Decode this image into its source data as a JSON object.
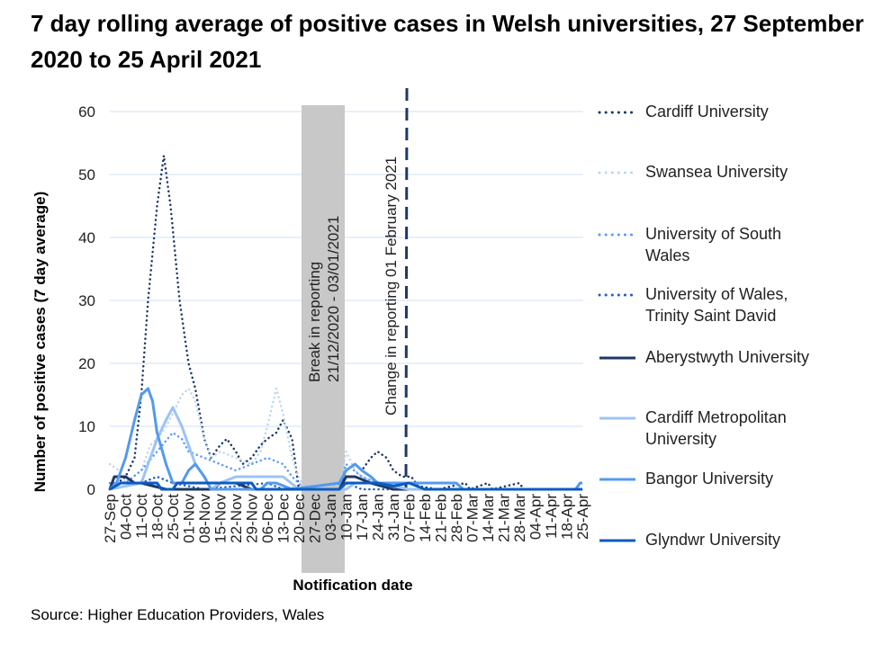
{
  "chart_data": {
    "type": "line",
    "title": "7 day rolling average of positive cases in Welsh universities, 27 September 2020 to 25 April 2021",
    "xlabel": "Notification date",
    "ylabel": "Number of positive cases (7 day average)",
    "ylim": [
      0,
      60
    ],
    "yticks": [
      0,
      10,
      20,
      30,
      40,
      50,
      60
    ],
    "grid": true,
    "legend_position": "right",
    "xticks": [
      "27-Sep",
      "04-Oct",
      "11-Oct",
      "18-Oct",
      "25-Oct",
      "01-Nov",
      "08-Nov",
      "15-Nov",
      "22-Nov",
      "29-Nov",
      "06-Dec",
      "13-Dec",
      "20-Dec",
      "27-Dec",
      "03-Jan",
      "10-Jan",
      "17-Jan",
      "24-Jan",
      "31-Jan",
      "07-Feb",
      "14-Feb",
      "21-Feb",
      "28-Feb",
      "07-Mar",
      "14-Mar",
      "21-Mar",
      "28-Mar",
      "04-Apr",
      "11-Apr",
      "18-Apr",
      "25-Apr"
    ],
    "annotations": {
      "break_label": "Break in reporting 21/12/2020 - 03/01/2021",
      "break_line1": "Break in reporting",
      "break_line2": "21/12/2020 - 03/01/2021",
      "change_label": "Change in reporting 01 February 2021"
    },
    "series": [
      {
        "name": "Cardiff University",
        "color": "#1f3864",
        "style": "dotted",
        "points": [
          [
            "2020-09-27",
            0
          ],
          [
            "2020-10-04",
            2
          ],
          [
            "2020-10-08",
            5
          ],
          [
            "2020-10-11",
            15
          ],
          [
            "2020-10-14",
            30
          ],
          [
            "2020-10-18",
            45
          ],
          [
            "2020-10-21",
            53
          ],
          [
            "2020-10-24",
            45
          ],
          [
            "2020-10-28",
            30
          ],
          [
            "2020-11-01",
            20
          ],
          [
            "2020-11-04",
            16
          ],
          [
            "2020-11-08",
            8
          ],
          [
            "2020-11-11",
            5
          ],
          [
            "2020-11-15",
            7
          ],
          [
            "2020-11-18",
            8
          ],
          [
            "2020-11-22",
            6
          ],
          [
            "2020-11-25",
            4
          ],
          [
            "2020-11-29",
            5
          ],
          [
            "2020-12-03",
            7
          ],
          [
            "2020-12-06",
            8
          ],
          [
            "2020-12-10",
            9
          ],
          [
            "2020-12-13",
            11
          ],
          [
            "2020-12-17",
            8
          ],
          [
            "2020-12-20",
            0
          ],
          [
            "2021-01-07",
            0
          ],
          [
            "2021-01-10",
            3
          ],
          [
            "2021-01-14",
            4
          ],
          [
            "2021-01-17",
            3
          ],
          [
            "2021-01-21",
            5
          ],
          [
            "2021-01-24",
            6
          ],
          [
            "2021-01-28",
            5
          ],
          [
            "2021-01-31",
            3
          ],
          [
            "2021-02-04",
            2
          ],
          [
            "2021-02-08",
            2
          ],
          [
            "2021-02-11",
            0.5
          ],
          [
            "2021-02-20",
            0
          ],
          [
            "2021-03-04",
            1
          ],
          [
            "2021-03-06",
            0
          ],
          [
            "2021-03-14",
            1
          ],
          [
            "2021-03-16",
            0
          ],
          [
            "2021-03-28",
            1
          ],
          [
            "2021-03-30",
            0
          ],
          [
            "2021-04-25",
            0
          ]
        ]
      },
      {
        "name": "Swansea University",
        "color": "#bdd7ee",
        "style": "dotted",
        "points": [
          [
            "2020-09-27",
            4
          ],
          [
            "2020-10-01",
            3
          ],
          [
            "2020-10-04",
            1
          ],
          [
            "2020-10-11",
            3
          ],
          [
            "2020-10-15",
            7
          ],
          [
            "2020-10-18",
            8
          ],
          [
            "2020-10-22",
            10
          ],
          [
            "2020-10-25",
            12
          ],
          [
            "2020-10-29",
            15
          ],
          [
            "2020-11-01",
            16
          ],
          [
            "2020-11-04",
            14
          ],
          [
            "2020-11-08",
            8
          ],
          [
            "2020-11-11",
            5
          ],
          [
            "2020-11-15",
            6
          ],
          [
            "2020-11-22",
            5
          ],
          [
            "2020-11-29",
            4
          ],
          [
            "2020-12-03",
            6
          ],
          [
            "2020-12-06",
            10
          ],
          [
            "2020-12-10",
            16
          ],
          [
            "2020-12-13",
            12
          ],
          [
            "2020-12-17",
            5
          ],
          [
            "2020-12-20",
            2
          ],
          [
            "2020-12-22",
            0
          ],
          [
            "2021-01-07",
            0
          ],
          [
            "2021-01-10",
            6
          ],
          [
            "2021-01-14",
            3
          ],
          [
            "2021-01-17",
            2
          ],
          [
            "2021-01-24",
            1
          ],
          [
            "2021-01-31",
            0.5
          ],
          [
            "2021-02-07",
            0
          ],
          [
            "2021-04-25",
            0
          ]
        ]
      },
      {
        "name": "University of South Wales",
        "color": "#5b9bff",
        "style": "dotted",
        "points": [
          [
            "2020-09-27",
            1
          ],
          [
            "2020-10-04",
            1
          ],
          [
            "2020-10-11",
            3
          ],
          [
            "2020-10-18",
            6
          ],
          [
            "2020-10-25",
            9
          ],
          [
            "2020-10-29",
            8
          ],
          [
            "2020-11-01",
            6
          ],
          [
            "2020-11-08",
            5
          ],
          [
            "2020-11-15",
            4
          ],
          [
            "2020-11-22",
            3
          ],
          [
            "2020-11-29",
            4
          ],
          [
            "2020-12-06",
            5
          ],
          [
            "2020-12-13",
            4
          ],
          [
            "2020-12-17",
            2
          ],
          [
            "2020-12-20",
            1
          ],
          [
            "2020-12-22",
            0
          ],
          [
            "2021-01-07",
            0
          ],
          [
            "2021-01-10",
            4
          ],
          [
            "2021-01-17",
            2
          ],
          [
            "2021-01-24",
            1
          ],
          [
            "2021-01-31",
            0
          ],
          [
            "2021-04-25",
            0
          ]
        ]
      },
      {
        "name": "University of Wales, Trinity Saint David",
        "color": "#1f5fbf",
        "style": "dotted",
        "points": [
          [
            "2020-09-27",
            0
          ],
          [
            "2020-10-11",
            1
          ],
          [
            "2020-10-18",
            2
          ],
          [
            "2020-10-25",
            1
          ],
          [
            "2020-11-01",
            0.5
          ],
          [
            "2020-11-08",
            0
          ],
          [
            "2020-12-06",
            1
          ],
          [
            "2020-12-13",
            0
          ],
          [
            "2021-01-10",
            1
          ],
          [
            "2021-01-17",
            0
          ],
          [
            "2021-04-25",
            0
          ]
        ]
      },
      {
        "name": "Aberystwyth University",
        "color": "#1f3864",
        "style": "solid",
        "points": [
          [
            "2020-09-27",
            0
          ],
          [
            "2020-09-29",
            2
          ],
          [
            "2020-10-04",
            2
          ],
          [
            "2020-10-08",
            1
          ],
          [
            "2020-10-11",
            1
          ],
          [
            "2020-10-22",
            0
          ],
          [
            "2020-11-12",
            0
          ],
          [
            "2020-11-15",
            1
          ],
          [
            "2020-11-22",
            1
          ],
          [
            "2020-11-29",
            0
          ],
          [
            "2021-01-07",
            0
          ],
          [
            "2021-01-10",
            2
          ],
          [
            "2021-01-14",
            2
          ],
          [
            "2021-01-21",
            1
          ],
          [
            "2021-01-31",
            0
          ],
          [
            "2021-04-25",
            0
          ]
        ]
      },
      {
        "name": "Cardiff Metropolitan University",
        "color": "#9dc3f6",
        "style": "solid",
        "points": [
          [
            "2020-09-27",
            0
          ],
          [
            "2020-10-11",
            1
          ],
          [
            "2020-10-15",
            5
          ],
          [
            "2020-10-18",
            8
          ],
          [
            "2020-10-22",
            11
          ],
          [
            "2020-10-25",
            13
          ],
          [
            "2020-10-29",
            10
          ],
          [
            "2020-11-01",
            7
          ],
          [
            "2020-11-04",
            4
          ],
          [
            "2020-11-08",
            2
          ],
          [
            "2020-11-11",
            0
          ],
          [
            "2020-11-15",
            1
          ],
          [
            "2020-11-22",
            2
          ],
          [
            "2020-11-29",
            2
          ],
          [
            "2020-12-06",
            2
          ],
          [
            "2020-12-13",
            2
          ],
          [
            "2020-12-20",
            0
          ],
          [
            "2021-01-10",
            0
          ],
          [
            "2021-01-14",
            1
          ],
          [
            "2021-01-24",
            1
          ],
          [
            "2021-01-31",
            0.5
          ],
          [
            "2021-02-07",
            0
          ],
          [
            "2021-04-25",
            0
          ]
        ]
      },
      {
        "name": "Bangor University",
        "color": "#5599ee",
        "style": "solid",
        "points": [
          [
            "2020-09-27",
            0
          ],
          [
            "2020-09-30",
            1
          ],
          [
            "2020-10-04",
            5
          ],
          [
            "2020-10-08",
            11
          ],
          [
            "2020-10-11",
            15
          ],
          [
            "2020-10-14",
            16
          ],
          [
            "2020-10-16",
            14
          ],
          [
            "2020-10-18",
            9
          ],
          [
            "2020-10-22",
            4
          ],
          [
            "2020-10-25",
            1
          ],
          [
            "2020-10-29",
            1
          ],
          [
            "2020-11-01",
            3
          ],
          [
            "2020-11-04",
            4
          ],
          [
            "2020-11-08",
            2
          ],
          [
            "2020-11-11",
            0
          ],
          [
            "2020-12-03",
            0
          ],
          [
            "2020-12-06",
            1
          ],
          [
            "2020-12-10",
            1
          ],
          [
            "2020-12-17",
            0
          ],
          [
            "2021-01-07",
            1
          ],
          [
            "2021-01-10",
            3
          ],
          [
            "2021-01-14",
            4
          ],
          [
            "2021-01-17",
            3
          ],
          [
            "2021-01-21",
            2
          ],
          [
            "2021-01-24",
            1
          ],
          [
            "2021-01-31",
            1
          ],
          [
            "2021-02-10",
            1
          ],
          [
            "2021-02-28",
            1
          ],
          [
            "2021-03-03",
            0
          ],
          [
            "2021-04-22",
            0
          ],
          [
            "2021-04-24",
            1
          ],
          [
            "2021-04-25",
            1
          ]
        ]
      },
      {
        "name": "Glyndwr University",
        "color": "#0a5bc4",
        "style": "solid",
        "points": [
          [
            "2020-09-27",
            0
          ],
          [
            "2020-10-02",
            1
          ],
          [
            "2020-10-18",
            1
          ],
          [
            "2020-10-20",
            0
          ],
          [
            "2020-10-25",
            0
          ],
          [
            "2020-10-27",
            1
          ],
          [
            "2020-11-29",
            1
          ],
          [
            "2020-12-01",
            0
          ],
          [
            "2021-01-07",
            0
          ],
          [
            "2021-01-10",
            1
          ],
          [
            "2021-01-24",
            1
          ],
          [
            "2021-01-31",
            0.5
          ],
          [
            "2021-02-07",
            1
          ],
          [
            "2021-02-14",
            0
          ],
          [
            "2021-04-25",
            0
          ]
        ]
      }
    ]
  },
  "source": "Source: Higher Education Providers, Wales"
}
